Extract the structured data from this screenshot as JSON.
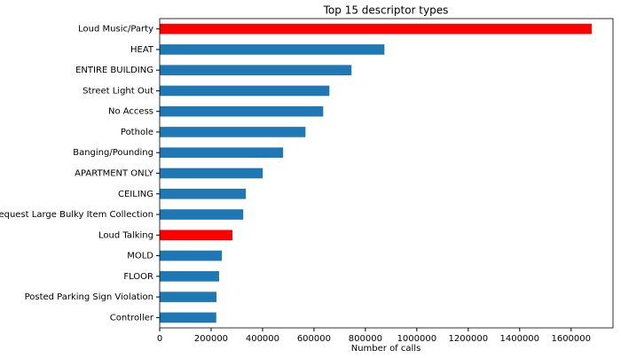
{
  "chart_data": {
    "type": "barh",
    "title": "Top 15 descriptor types",
    "x_label": "Number of calls",
    "categories": [
      "Loud Music/Party",
      "HEAT",
      "ENTIRE BUILDING",
      "Street Light Out",
      "No Access",
      "Pothole",
      "Banging/Pounding",
      "APARTMENT ONLY",
      "CEILING",
      "Request Large Bulky Item Collection",
      "Loud Talking",
      "MOLD",
      "FLOOR",
      "Posted Parking Sign Violation",
      "Controller"
    ],
    "values": [
      1680000,
      874000,
      746000,
      660000,
      636000,
      567000,
      480000,
      401000,
      335000,
      325000,
      283000,
      242000,
      231000,
      221000,
      220000
    ],
    "colors": [
      "#ff0000",
      "#1f77b4",
      "#1f77b4",
      "#1f77b4",
      "#1f77b4",
      "#1f77b4",
      "#1f77b4",
      "#1f77b4",
      "#1f77b4",
      "#1f77b4",
      "#ff0000",
      "#1f77b4",
      "#1f77b4",
      "#1f77b4",
      "#1f77b4"
    ],
    "xlim": [
      0,
      1763000
    ],
    "xticks": [
      0,
      200000,
      400000,
      600000,
      800000,
      1000000,
      1200000,
      1400000,
      1600000
    ],
    "grid": false
  }
}
